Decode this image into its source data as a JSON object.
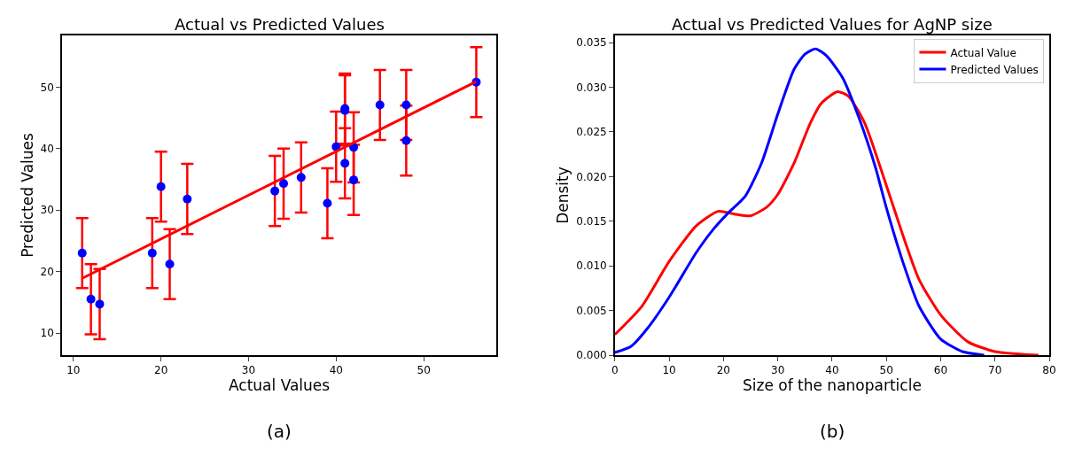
{
  "chart_data": [
    {
      "type": "scatter",
      "title": "Actual vs Predicted Values",
      "xlabel": "Actual Values",
      "ylabel": "Predicted Values",
      "annotations": [
        "(a)"
      ],
      "xlim": [
        8.7,
        58.3
      ],
      "ylim": [
        6.4,
        58.4
      ],
      "xticks": [
        10,
        20,
        30,
        40,
        50
      ],
      "yticks": [
        10,
        20,
        30,
        40,
        50
      ],
      "legend": false,
      "series": [
        {
          "type": "scatter",
          "marker": "circle",
          "color": "#0000ff",
          "x": [
            11,
            12,
            13,
            19,
            20,
            21,
            23,
            33,
            34,
            36,
            39,
            40,
            41,
            41,
            41,
            42,
            42,
            45,
            48,
            48,
            56
          ],
          "values": [
            23,
            15.5,
            14.7,
            23,
            33.8,
            21.2,
            31.8,
            33.1,
            34.3,
            35.3,
            31.1,
            40.3,
            46.5,
            46.2,
            37.6,
            40.2,
            34.9,
            47.1,
            47.1,
            41.3,
            50.8
          ],
          "errors": [
            5.7,
            5.7,
            5.7,
            5.7,
            5.7,
            5.7,
            5.7,
            5.7,
            5.7,
            5.7,
            5.7,
            5.7,
            5.7,
            5.7,
            5.7,
            5.7,
            5.7,
            5.7,
            5.7,
            5.7,
            5.7
          ]
        },
        {
          "type": "line",
          "color": "#ff0000",
          "x": [
            11,
            56
          ],
          "values": [
            18.9,
            50.9
          ]
        }
      ]
    },
    {
      "type": "line",
      "title": "Actual vs Predicted Values for AgNP size",
      "xlabel": "Size of the nanoparticle",
      "ylabel": "Density",
      "annotations": [
        "(b)"
      ],
      "xlim": [
        0,
        80
      ],
      "ylim": [
        0,
        0.0358
      ],
      "xticks": [
        0,
        10,
        20,
        30,
        40,
        50,
        60,
        70,
        80
      ],
      "yticks": [
        {
          "value": 0,
          "label": "0.000"
        },
        {
          "value": 0.005,
          "label": "0.005"
        },
        {
          "value": 0.01,
          "label": "0.010"
        },
        {
          "value": 0.015,
          "label": "0.015"
        },
        {
          "value": 0.02,
          "label": "0.020"
        },
        {
          "value": 0.025,
          "label": "0.025"
        },
        {
          "value": 0.03,
          "label": "0.030"
        },
        {
          "value": 0.035,
          "label": "0.035"
        }
      ],
      "legend": "top right",
      "series": [
        {
          "name": "Actual Value",
          "color": "#ff0000",
          "x": [
            0,
            5,
            10,
            15,
            19,
            22,
            25,
            28,
            30,
            33,
            36,
            38,
            41,
            43,
            46,
            50,
            53,
            56,
            60,
            65,
            70,
            75,
            78
          ],
          "values": [
            0.0023,
            0.0055,
            0.0105,
            0.0145,
            0.0161,
            0.0158,
            0.0156,
            0.0166,
            0.018,
            0.0215,
            0.026,
            0.0282,
            0.0295,
            0.029,
            0.026,
            0.019,
            0.0135,
            0.0085,
            0.0045,
            0.0015,
            0.0004,
            0.0001,
            0.0
          ]
        },
        {
          "name": "Predicted Values",
          "color": "#0000ff",
          "x": [
            0,
            3,
            6,
            10,
            15,
            18,
            21,
            24,
            27,
            30,
            33,
            35,
            37,
            39,
            42,
            45,
            48,
            50,
            53,
            56,
            60,
            64,
            68
          ],
          "values": [
            0.0003,
            0.001,
            0.003,
            0.0065,
            0.0115,
            0.014,
            0.016,
            0.0178,
            0.0215,
            0.027,
            0.032,
            0.0337,
            0.0343,
            0.0335,
            0.031,
            0.0265,
            0.021,
            0.0165,
            0.0105,
            0.0055,
            0.0018,
            0.0004,
            0.0
          ]
        }
      ]
    }
  ]
}
